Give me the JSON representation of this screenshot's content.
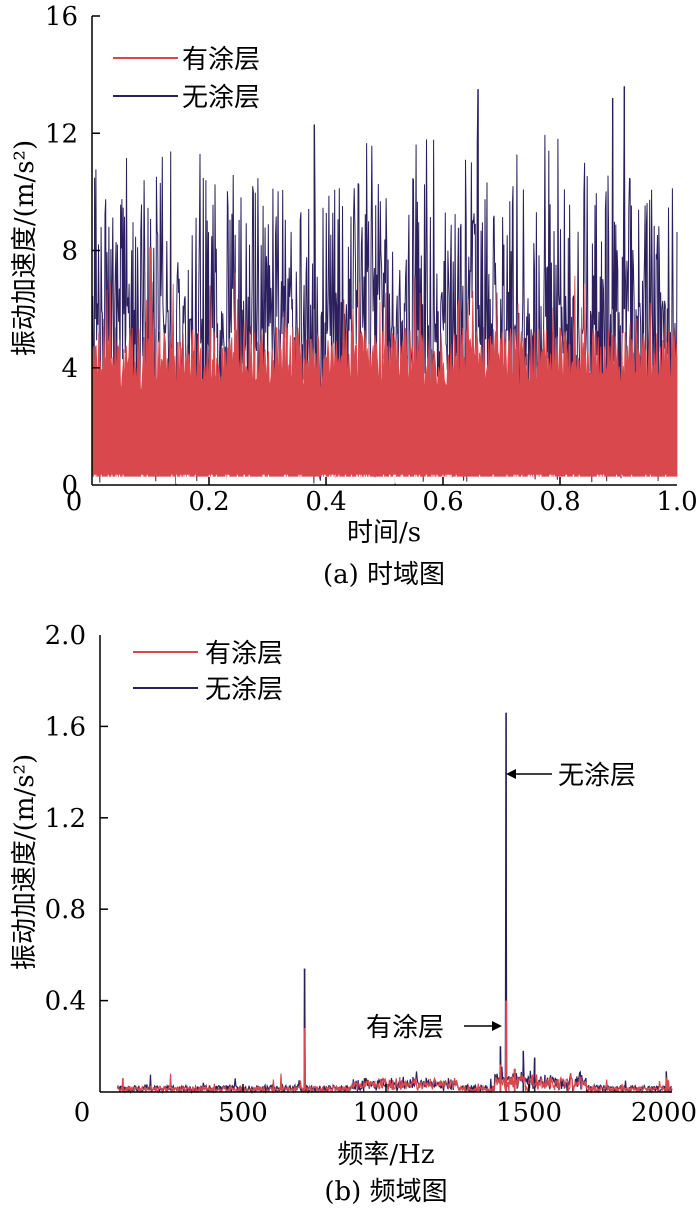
{
  "colors": {
    "coated": "#d9484c",
    "uncoated": "#2b1f5e",
    "axis": "#000000"
  },
  "chart_data": [
    {
      "type": "line",
      "panel": "time",
      "caption": "(a) 时域图",
      "xlabel": "时间/s",
      "ylabel": "振动加速度/(m/s²)",
      "xlim": [
        0,
        1.0
      ],
      "ylim": [
        0,
        16
      ],
      "xticks": [
        "0",
        "0.2",
        "0.4",
        "0.6",
        "0.8",
        "1.0"
      ],
      "yticks": [
        "0",
        "4",
        "8",
        "12",
        "16"
      ],
      "legend": "top-left",
      "series": [
        {
          "name": "有涂层",
          "color": "#d9484c",
          "typical_range": [
            0,
            5.5
          ],
          "max": 8.2
        },
        {
          "name": "无涂层",
          "color": "#2b1f5e",
          "typical_range": [
            0,
            11
          ],
          "max": 13.6,
          "peaks": [
            [
              0.38,
              12.3
            ],
            [
              0.66,
              13.5
            ],
            [
              0.89,
              13.2
            ],
            [
              0.91,
              13.6
            ]
          ]
        }
      ]
    },
    {
      "type": "line",
      "panel": "frequency",
      "caption": "(b) 频域图",
      "xlabel": "频率/Hz",
      "ylabel": "振动加速度/(m/s²)",
      "xlim": [
        0,
        2000
      ],
      "ylim": [
        0,
        2.0
      ],
      "xticks": [
        "0",
        "500",
        "1000",
        "1500",
        "2000"
      ],
      "yticks": [
        "0.4",
        "0.8",
        "1.2",
        "1.6",
        "2.0"
      ],
      "legend": "top-left",
      "annotations": [
        {
          "text": "无涂层",
          "x": 1420,
          "y": 1.38
        },
        {
          "text": "有涂层",
          "x": 1420,
          "y": 0.37
        }
      ],
      "series": [
        {
          "name": "有涂层",
          "color": "#d9484c",
          "peaks": [
            [
              715,
              0.28
            ],
            [
              1420,
              0.4
            ],
            [
              1400,
              0.12
            ],
            [
              1450,
              0.1
            ],
            [
              80,
              0.06
            ],
            [
              1980,
              0.06
            ]
          ]
        },
        {
          "name": "无涂层",
          "color": "#2b1f5e",
          "peaks": [
            [
              715,
              0.54
            ],
            [
              1420,
              1.66
            ],
            [
              1400,
              0.2
            ],
            [
              1480,
              0.18
            ],
            [
              1520,
              0.15
            ],
            [
              1980,
              0.09
            ]
          ]
        }
      ]
    }
  ]
}
